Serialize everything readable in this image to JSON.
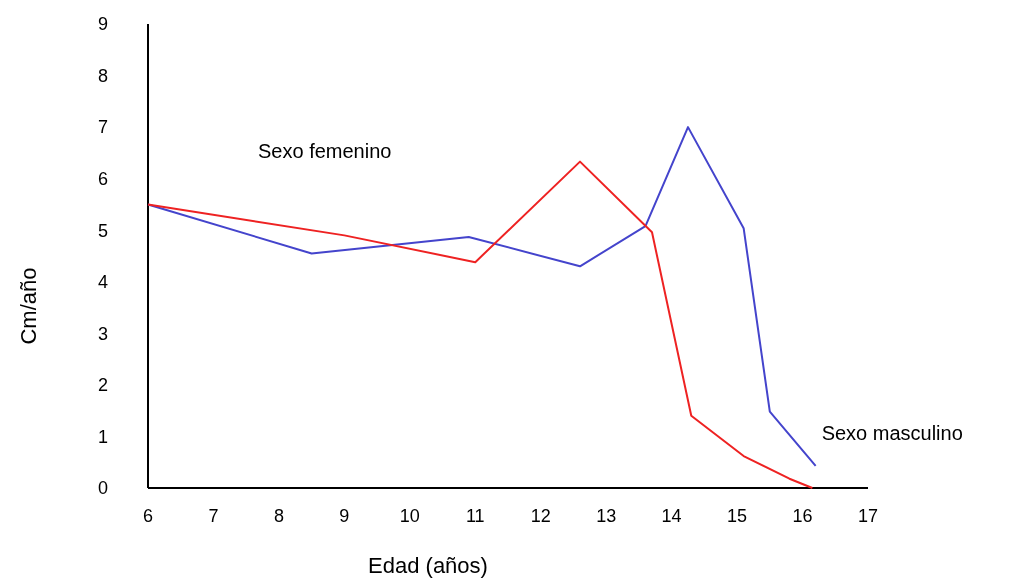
{
  "chart_data": {
    "type": "line",
    "xlabel": "Edad (años)",
    "ylabel": "Cm/año",
    "xlim": [
      6,
      17
    ],
    "xticks": [
      6,
      7,
      8,
      9,
      10,
      11,
      12,
      13,
      14,
      15,
      16,
      17
    ],
    "ylim": [
      0,
      9
    ],
    "yticks": [
      0,
      1,
      2,
      3,
      4,
      5,
      6,
      7,
      8,
      9
    ],
    "grid": false,
    "marker": "none",
    "line_style": "solid",
    "series": [
      {
        "name": "Sexo masculino",
        "color": "#4444cc",
        "x": [
          6,
          8.5,
          10.9,
          12.6,
          13.6,
          14.25,
          15.1,
          15.5,
          16.2
        ],
        "values": [
          5.5,
          4.55,
          4.87,
          4.3,
          5.08,
          7.0,
          5.04,
          1.48,
          0.43
        ]
      },
      {
        "name": "Sexo femenino",
        "color": "#ee2222",
        "x": [
          6,
          9,
          11,
          12.6,
          13.7,
          14.3,
          15.1,
          15.8,
          16.15
        ],
        "values": [
          5.5,
          4.9,
          4.38,
          6.33,
          4.96,
          1.4,
          0.62,
          0.18,
          0
        ]
      }
    ]
  }
}
